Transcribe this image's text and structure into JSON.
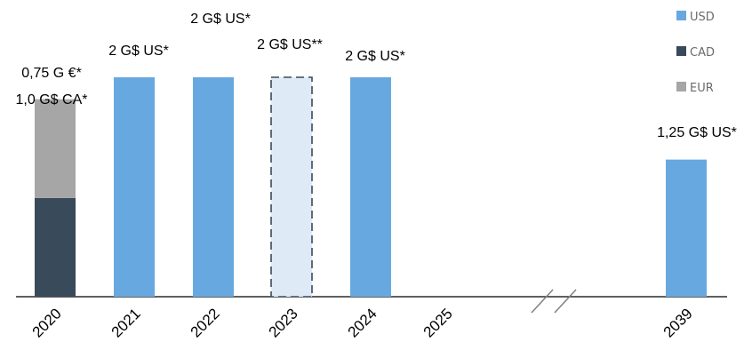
{
  "chart_data": {
    "type": "bar",
    "stacked": true,
    "categories": [
      "2020",
      "2021",
      "2022",
      "2023",
      "2024",
      "2025",
      "2039"
    ],
    "series": [
      {
        "name": "USD",
        "color": "#67a8e0",
        "values": [
          0,
          2,
          2,
          2,
          2,
          0,
          1.25
        ]
      },
      {
        "name": "CAD",
        "color": "#394a5a",
        "values": [
          0.9,
          0,
          0,
          0,
          0,
          0,
          0
        ]
      },
      {
        "name": "EUR",
        "color": "#a6a6a6",
        "values": [
          0.9,
          0,
          0,
          0,
          0,
          0,
          0
        ]
      }
    ],
    "bar_styles": [
      {
        "category": "2023",
        "style": "dashed-outline",
        "fill": "#deebf7",
        "stroke": "#394a5a"
      }
    ],
    "data_labels": [
      {
        "category": "2020",
        "lines": [
          "0,75 G €*",
          "1,0 G$ CA*"
        ]
      },
      {
        "category": "2021",
        "lines": [
          "2 G$ US*"
        ]
      },
      {
        "category": "2022",
        "lines": [
          "2 G$ US*"
        ]
      },
      {
        "category": "2023",
        "lines": [
          "2 G$ US**"
        ]
      },
      {
        "category": "2024",
        "lines": [
          "2 G$ US*"
        ]
      },
      {
        "category": "2039",
        "lines": [
          "1,25 G$ US*"
        ]
      }
    ],
    "axis_break": {
      "between": [
        "2025",
        "2039"
      ]
    },
    "ylim": [
      0,
      2.1
    ],
    "legend": {
      "position": "top-right",
      "entries": [
        "USD",
        "CAD",
        "EUR"
      ]
    },
    "grid": false,
    "xlabel": "",
    "ylabel": ""
  }
}
